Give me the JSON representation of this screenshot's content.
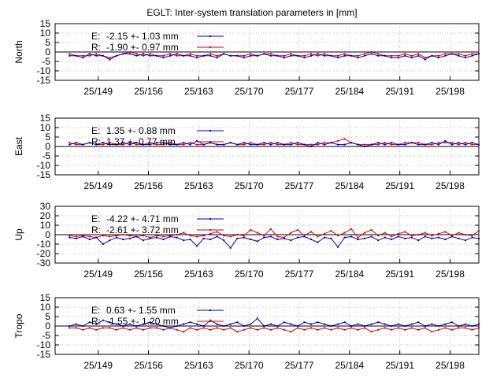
{
  "chart_data": {
    "type": "line",
    "title": "EGLT: Inter-system translation parameters in [mm]",
    "x_tick_labels": [
      "25/149",
      "25/156",
      "25/163",
      "25/170",
      "25/177",
      "25/184",
      "25/191",
      "25/198"
    ],
    "x_tick_values": [
      149,
      156,
      163,
      170,
      177,
      184,
      191,
      198
    ],
    "xlim": [
      143,
      202
    ],
    "colors": {
      "E": "#0000cc",
      "R": "#dd0000",
      "zero": "#000000",
      "grid": "#888888"
    },
    "panels": [
      {
        "ylabel": "North",
        "ylim": [
          -15,
          15
        ],
        "yticks": [
          -15,
          -10,
          -5,
          0,
          5,
          10,
          15
        ],
        "legend": [
          {
            "label": "E:",
            "stat": "-2.15 +- 1.03 mm"
          },
          {
            "label": "R:",
            "stat": "-1.90 +- 0.97 mm"
          }
        ],
        "series": [
          {
            "name": "E",
            "values": [
              -2,
              -2,
              -3,
              -1,
              -2,
              -2,
              -4,
              -2,
              -1,
              -1,
              -2,
              -1,
              -2,
              -2,
              -3,
              -2,
              -1,
              -2,
              -2,
              -3,
              -2,
              -2,
              -3,
              -1,
              -2,
              -2,
              -3,
              -2,
              -2,
              -1,
              -2,
              -2,
              -3,
              -2,
              -2,
              -3,
              -2,
              -1,
              -2,
              -2,
              -3,
              -2,
              -2,
              -3,
              -2,
              -1,
              -2,
              -2,
              -3,
              -3,
              -2,
              -3,
              -2,
              -4,
              -2,
              -3,
              -2,
              -1,
              -2,
              -3,
              -2,
              -1
            ]
          },
          {
            "name": "R",
            "values": [
              -1,
              -2,
              -2,
              -2,
              -1,
              -2,
              -3,
              -2,
              -1,
              0,
              -1,
              -2,
              -1,
              -2,
              -2,
              -1,
              -2,
              -2,
              -1,
              -2,
              -2,
              -1,
              -2,
              -1,
              -2,
              -2,
              -2,
              -1,
              -2,
              -1,
              -1,
              -2,
              -2,
              -1,
              -2,
              -2,
              -1,
              -2,
              -1,
              -2,
              -2,
              -1,
              -2,
              -2,
              -1,
              0,
              -1,
              -2,
              -2,
              -2,
              -1,
              -2,
              -1,
              -3,
              -2,
              -2,
              -1,
              -1,
              -1,
              -2,
              -1,
              -1
            ]
          }
        ]
      },
      {
        "ylabel": "East",
        "ylim": [
          -15,
          15
        ],
        "yticks": [
          -15,
          -10,
          -5,
          0,
          5,
          10,
          15
        ],
        "legend": [
          {
            "label": "E:",
            "stat": "1.35 +- 0.88 mm"
          },
          {
            "label": "R:",
            "stat": "1.37 +- 0.77 mm"
          }
        ],
        "series": [
          {
            "name": "E",
            "values": [
              1,
              2,
              1,
              2,
              1,
              2,
              1,
              1,
              2,
              1,
              2,
              1,
              1,
              2,
              2,
              1,
              1,
              2,
              1,
              3,
              1,
              2,
              1,
              1,
              2,
              1,
              2,
              1,
              1,
              2,
              1,
              2,
              1,
              1,
              2,
              1,
              0,
              2,
              1,
              2,
              1,
              1,
              2,
              1,
              0,
              1,
              2,
              1,
              2,
              1,
              1,
              2,
              1,
              1,
              2,
              1,
              3,
              1,
              2,
              1,
              2,
              1
            ]
          },
          {
            "name": "R",
            "values": [
              2,
              1,
              1,
              2,
              1,
              1,
              2,
              1,
              1,
              2,
              1,
              1,
              2,
              1,
              1,
              2,
              1,
              1,
              2,
              1,
              1,
              2,
              1,
              1,
              2,
              1,
              1,
              2,
              1,
              1,
              2,
              1,
              1,
              2,
              1,
              1,
              1,
              1,
              2,
              2,
              3,
              4,
              2,
              1,
              1,
              1,
              1,
              2,
              1,
              1,
              2,
              2,
              2,
              1,
              1,
              2,
              2,
              2,
              1,
              2,
              1,
              1
            ]
          }
        ]
      },
      {
        "ylabel": "Up",
        "ylim": [
          -30,
          30
        ],
        "yticks": [
          -30,
          -20,
          -10,
          0,
          10,
          20,
          30
        ],
        "legend": [
          {
            "label": "E:",
            "stat": "-4.22 +- 4.71 mm"
          },
          {
            "label": "R:",
            "stat": "-2.61 +- 3.72 mm"
          }
        ],
        "series": [
          {
            "name": "E",
            "values": [
              -3,
              -4,
              -2,
              -5,
              -3,
              -10,
              -6,
              -3,
              -5,
              -4,
              -2,
              -6,
              -4,
              -3,
              -5,
              -2,
              -3,
              -6,
              -5,
              -12,
              -4,
              -5,
              -2,
              -6,
              -14,
              -4,
              -3,
              -5,
              -7,
              -3,
              -2,
              -5,
              -4,
              -6,
              -3,
              -2,
              -5,
              -8,
              -3,
              -4,
              -13,
              -3,
              -2,
              -5,
              -4,
              -2,
              -6,
              -3,
              -5,
              -2,
              -4,
              -3,
              -6,
              -2,
              -4,
              -3,
              -5,
              -2,
              -4,
              -6,
              -3,
              -4
            ]
          },
          {
            "name": "R",
            "values": [
              -1,
              -2,
              -1,
              -2,
              -3,
              -1,
              -2,
              -1,
              0,
              -1,
              -2,
              -1,
              -3,
              -1,
              -2,
              -1,
              0,
              2,
              -1,
              -2,
              -1,
              1,
              3,
              -1,
              -2,
              0,
              -1,
              5,
              2,
              -1,
              6,
              -2,
              -3,
              2,
              5,
              -1,
              3,
              -2,
              1,
              4,
              -1,
              2,
              6,
              -3,
              2,
              5,
              -1,
              2,
              -2,
              1,
              3,
              -1,
              0,
              2,
              -1,
              1,
              3,
              -1,
              2,
              0,
              -1,
              4
            ]
          }
        ]
      },
      {
        "ylabel": "Tropo",
        "ylim": [
          -15,
          15
        ],
        "yticks": [
          -15,
          -10,
          -5,
          0,
          5,
          10,
          15
        ],
        "legend": [
          {
            "label": "E:",
            "stat": "0.63 +- 1.55 mm"
          },
          {
            "label": "R:",
            "stat": "-1.55 +- 1.20 mm"
          }
        ],
        "series": [
          {
            "name": "E",
            "values": [
              0,
              1,
              0,
              2,
              1,
              3,
              2,
              1,
              0,
              1,
              0,
              1,
              2,
              1,
              0,
              -1,
              0,
              1,
              2,
              1,
              0,
              3,
              1,
              0,
              1,
              2,
              0,
              1,
              4,
              0,
              1,
              0,
              2,
              1,
              0,
              2,
              1,
              2,
              1,
              0,
              1,
              2,
              0,
              1,
              0,
              1,
              2,
              1,
              0,
              1,
              0,
              1,
              2,
              0,
              1,
              0,
              1,
              2,
              0,
              1,
              0,
              1
            ]
          },
          {
            "name": "R",
            "values": [
              -1,
              -1,
              -2,
              -1,
              -2,
              -1,
              -1,
              -2,
              -1,
              -2,
              -1,
              -2,
              -1,
              -1,
              -2,
              -1,
              -2,
              -3,
              -1,
              -2,
              -1,
              -2,
              -1,
              -2,
              -1,
              -3,
              -2,
              -1,
              -2,
              -1,
              -2,
              -1,
              -2,
              -3,
              -1,
              -2,
              -1,
              -2,
              -1,
              -2,
              -1,
              -2,
              -1,
              -2,
              -1,
              -3,
              -2,
              -1,
              -2,
              -1,
              -2,
              -1,
              -2,
              -1,
              -3,
              -2,
              -1,
              -2,
              -1,
              -1,
              -2,
              -1
            ]
          }
        ]
      }
    ]
  }
}
